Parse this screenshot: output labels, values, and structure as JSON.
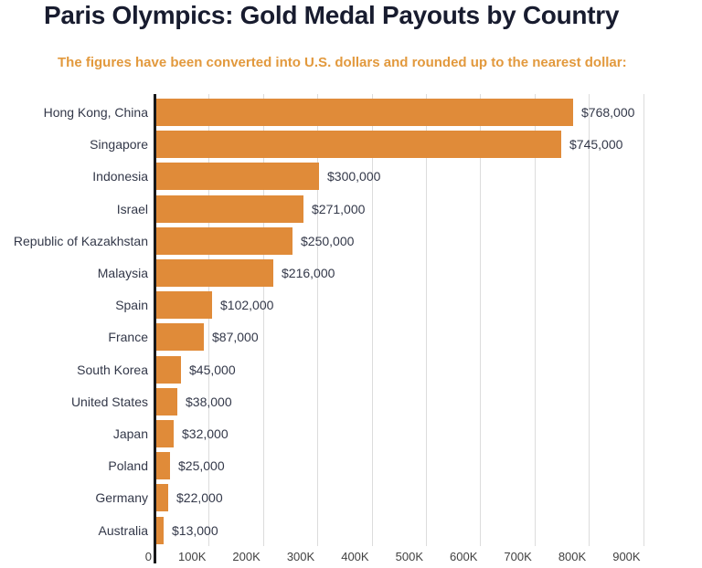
{
  "header": {
    "title": "Paris Olympics: Gold Medal Payouts by Country",
    "subtitle": "The figures have been converted into U.S. dollars and rounded up to the nearest dollar:"
  },
  "colors": {
    "title": "#181c2f",
    "subtitle": "#e2993d",
    "bar": "#e08b39",
    "category_label": "#333849",
    "value_label": "#333849",
    "gridline": "#dcdcdc",
    "axis_line": "#17181a",
    "tick_label": "#414141",
    "background": "#ffffff"
  },
  "chart_data": {
    "type": "bar",
    "orientation": "horizontal",
    "title": "Paris Olympics: Gold Medal Payouts by Country",
    "subtitle": "The figures have been converted into U.S. dollars and rounded up to the nearest dollar:",
    "categories": [
      "Hong Kong, China",
      "Singapore",
      "Indonesia",
      "Israel",
      "Republic of Kazakhstan",
      "Malaysia",
      "Spain",
      "France",
      "South Korea",
      "United States",
      "Japan",
      "Poland",
      "Germany",
      "Australia"
    ],
    "values": [
      768000,
      745000,
      300000,
      271000,
      250000,
      216000,
      102000,
      87000,
      45000,
      38000,
      32000,
      25000,
      22000,
      13000
    ],
    "value_labels": [
      "$768,000",
      "$745,000",
      "$300,000",
      "$271,000",
      "$250,000",
      "$216,000",
      "$102,000",
      "$87,000",
      "$45,000",
      "$38,000",
      "$32,000",
      "$25,000",
      "$22,000",
      "$13,000"
    ],
    "xlabel": "",
    "ylabel": "",
    "xlim": [
      0,
      1000000
    ],
    "x_tick_labels": [
      "0",
      "100K",
      "200K",
      "300K",
      "400K",
      "500K",
      "600K",
      "700K",
      "800K",
      "900K"
    ],
    "x_tick_values": [
      0,
      100000,
      200000,
      300000,
      400000,
      500000,
      600000,
      700000,
      800000,
      900000
    ],
    "grid": "vertical-only",
    "legend": "none"
  }
}
